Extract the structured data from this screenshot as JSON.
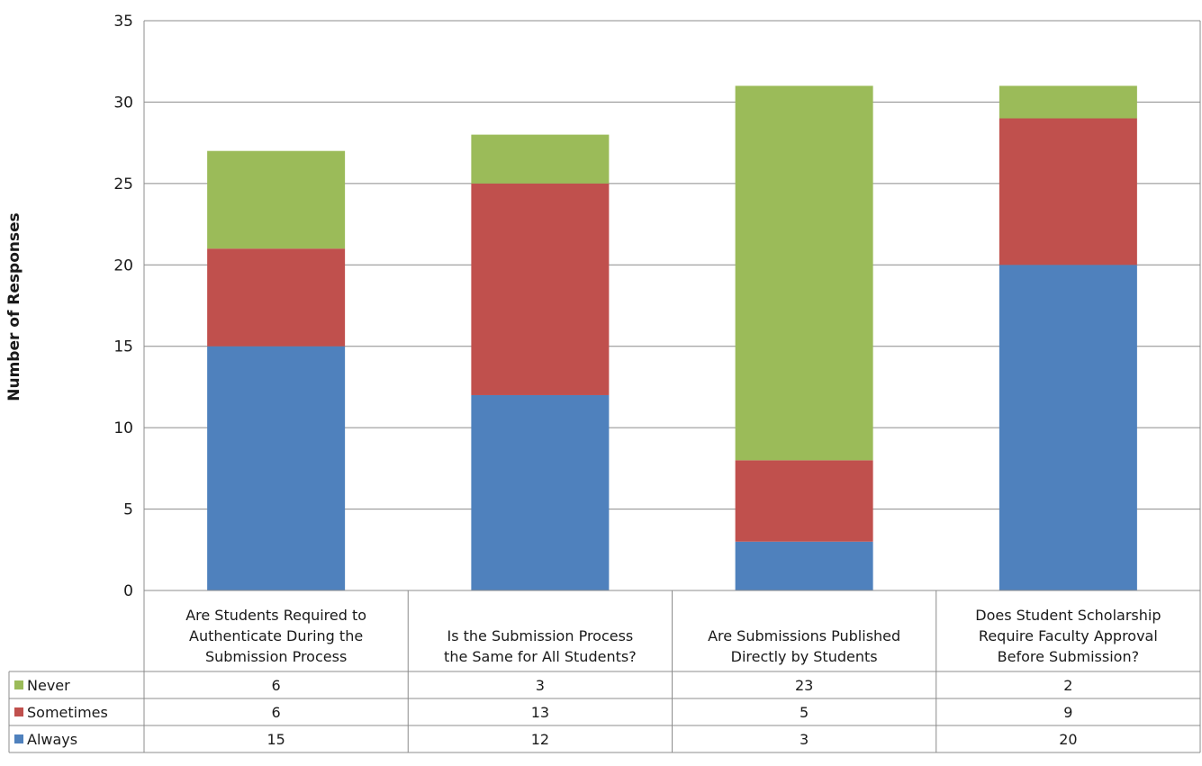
{
  "chart_data": {
    "type": "bar",
    "stacked": true,
    "ylabel": "Number of Responses",
    "ylim": [
      0,
      35
    ],
    "yticks": [
      0,
      5,
      10,
      15,
      20,
      25,
      30,
      35
    ],
    "grid": true,
    "legend": "data-table",
    "categories": [
      "Are Students Required to Authenticate During the Submission Process",
      "Is the Submission Process the Same for All Students?",
      "Are Submissions Published Directly by Students",
      "Does Student Scholarship Require Faculty Approval Before Submission?"
    ],
    "category_lines": [
      [
        "Are Students Required to",
        "Authenticate During the",
        "Submission Process"
      ],
      [
        "Is the Submission Process",
        "the Same for All Students?"
      ],
      [
        "Are Submissions Published",
        "Directly by Students"
      ],
      [
        "Does Student Scholarship",
        "Require Faculty Approval",
        "Before Submission?"
      ]
    ],
    "series": [
      {
        "name": "Always",
        "color": "#4f81bd",
        "values": [
          15,
          12,
          3,
          20
        ]
      },
      {
        "name": "Sometimes",
        "color": "#c0504d",
        "values": [
          6,
          13,
          5,
          9
        ]
      },
      {
        "name": "Never",
        "color": "#9bbb59",
        "values": [
          6,
          3,
          23,
          2
        ]
      }
    ],
    "table_order": [
      "Never",
      "Sometimes",
      "Always"
    ]
  }
}
